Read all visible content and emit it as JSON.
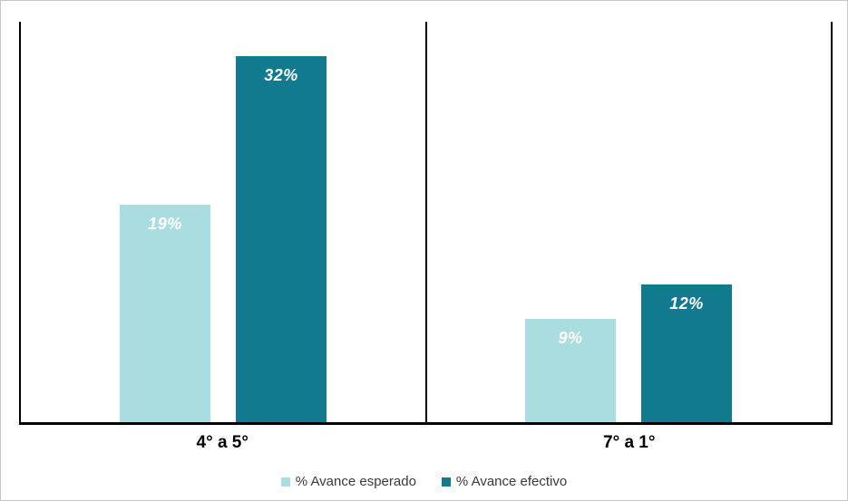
{
  "figure": {
    "background": "#ffffff",
    "border_color": "#c6c6c6",
    "axis_line_color": "#000000"
  },
  "chart_data": {
    "type": "bar",
    "title": "",
    "xlabel": "",
    "ylabel": "",
    "categories": [
      "4° a 5°",
      "7° a 1°"
    ],
    "series": [
      {
        "name": "% Avance esperado",
        "color": "#A9DDDF",
        "values": [
          19,
          9
        ],
        "data_labels": [
          "19%",
          "9%"
        ]
      },
      {
        "name": "% Avance efectivo",
        "color": "#117A8F",
        "values": [
          32,
          12
        ],
        "data_labels": [
          "32%",
          "12%"
        ]
      }
    ],
    "ylim": [
      0,
      35
    ],
    "y_axis_visible": false,
    "grid": false,
    "panel_dividers": true,
    "value_label_color": "#ffffff",
    "legend_position": "bottom-center"
  }
}
